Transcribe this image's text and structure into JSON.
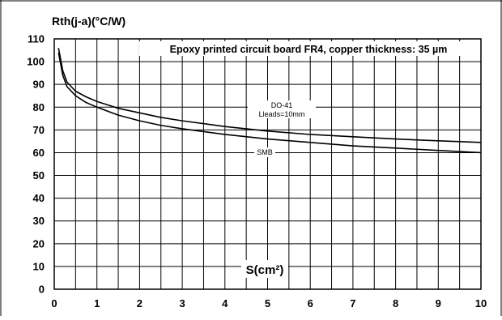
{
  "chart_data": {
    "type": "line",
    "subtitle": "Epoxy printed circuit board FR4, copper thickness: 35 µm",
    "xlabel": "S(cm²)",
    "ylabel": "Rth(j-a)(°C/W)",
    "xlim": [
      0,
      10
    ],
    "ylim": [
      0,
      110
    ],
    "x_ticks": [
      "0",
      "1",
      "2",
      "3",
      "4",
      "5",
      "6",
      "7",
      "8",
      "9",
      "10"
    ],
    "y_ticks": [
      "0",
      "10",
      "20",
      "30",
      "40",
      "50",
      "60",
      "70",
      "80",
      "90",
      "100",
      "110"
    ],
    "grid": true,
    "series": [
      {
        "name": "DO-41",
        "name_line2": "Lleads=10mm",
        "x": [
          0.1,
          0.2,
          0.3,
          0.5,
          0.75,
          1,
          1.5,
          2,
          2.5,
          3,
          4,
          5,
          6,
          7,
          8,
          9,
          10
        ],
        "y": [
          106,
          96,
          91,
          87,
          84.5,
          82.5,
          79.5,
          77.5,
          75.5,
          74,
          71.5,
          69.5,
          68,
          67,
          66,
          65.2,
          64.5
        ]
      },
      {
        "name": "SMB",
        "x": [
          0.1,
          0.2,
          0.3,
          0.5,
          0.75,
          1,
          1.5,
          2,
          2.5,
          3,
          4,
          5,
          6,
          7,
          8,
          9,
          10
        ],
        "y": [
          104,
          94,
          89,
          85,
          82,
          80,
          76.5,
          74,
          72,
          70.5,
          68,
          66,
          64.5,
          63,
          62,
          61,
          60
        ]
      }
    ]
  }
}
